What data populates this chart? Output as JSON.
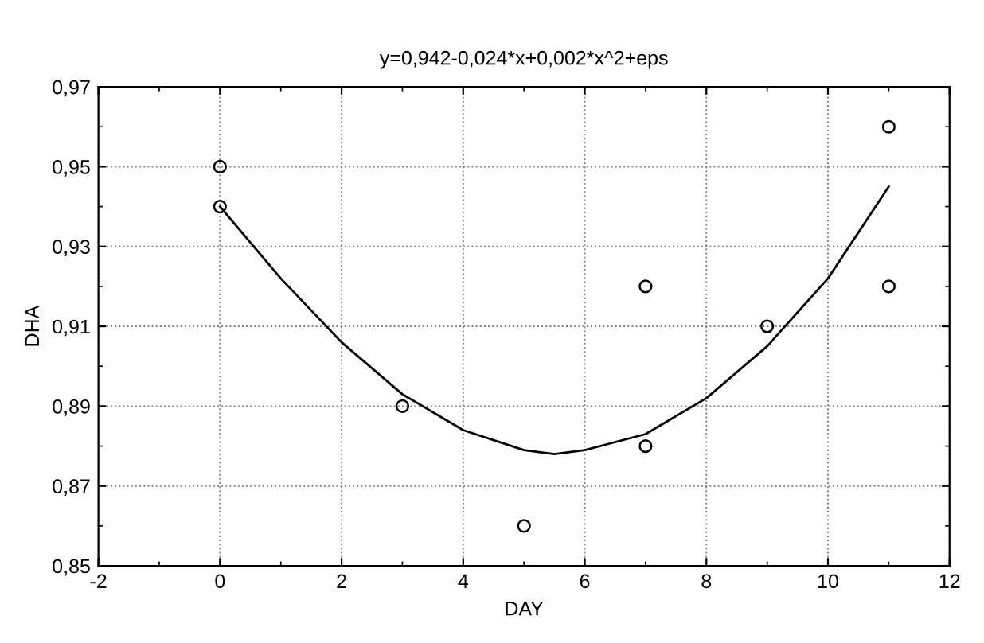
{
  "chart_data": {
    "type": "scatter",
    "title": "y=0,942-0,024*x+0,002*x^2+eps",
    "xlabel": "DAY",
    "ylabel": "DHA",
    "series": [
      {
        "color": "#000000",
        "marker": "circle",
        "x": [
          0,
          0,
          3,
          5,
          7,
          7,
          9,
          11,
          11
        ],
        "values": [
          0.95,
          0.94,
          0.89,
          0.86,
          0.92,
          0.88,
          0.91,
          0.96,
          0.92
        ]
      },
      {
        "type": "line",
        "color": "#000000",
        "marker": "none",
        "line_style": "solid",
        "x": [
          0,
          1,
          2,
          3,
          4,
          5,
          5.5,
          6,
          7,
          8,
          9,
          10,
          11
        ],
        "values": [
          0.94,
          0.922,
          0.906,
          0.893,
          0.884,
          0.879,
          0.878,
          0.879,
          0.883,
          0.892,
          0.905,
          0.922,
          0.945
        ]
      }
    ],
    "xlim": [
      -2,
      12
    ],
    "xticks": [
      -2,
      0,
      2,
      4,
      6,
      8,
      10,
      12
    ],
    "ylim": [
      0.85,
      0.97
    ],
    "yticks": [
      {
        "value": 0.85,
        "label": "0,85"
      },
      {
        "value": 0.87,
        "label": "0,87"
      },
      {
        "value": 0.89,
        "label": "0,89"
      },
      {
        "value": 0.91,
        "label": "0,91"
      },
      {
        "value": 0.93,
        "label": "0,93"
      },
      {
        "value": 0.95,
        "label": "0,95"
      },
      {
        "value": 0.97,
        "label": "0,97"
      }
    ],
    "grid": true
  }
}
